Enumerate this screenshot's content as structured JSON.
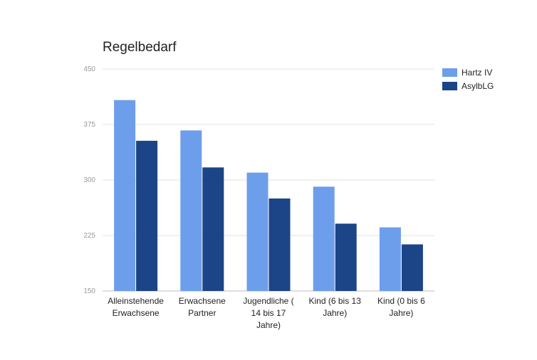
{
  "chart_data": {
    "type": "bar",
    "title": "Regelbedarf",
    "categories": [
      [
        "Alleinstehende",
        "Erwachsene"
      ],
      [
        "Erwachsene",
        "Partner"
      ],
      [
        "Jugendliche (",
        "14 bis 17",
        "Jahre)"
      ],
      [
        "Kind (6 bis 13",
        "Jahre)"
      ],
      [
        "Kind (0 bis 6",
        "Jahre)"
      ]
    ],
    "series": [
      {
        "name": "Hartz IV",
        "color": "#6d9eeb",
        "values": [
          408,
          367,
          310,
          291,
          236
        ]
      },
      {
        "name": "AsylbLG",
        "color": "#1c4587",
        "values": [
          353,
          317,
          275,
          241,
          213
        ]
      }
    ],
    "ylim": [
      150,
      450
    ],
    "yticks": [
      "150",
      "225",
      "300",
      "375",
      "450"
    ],
    "grid": true,
    "legend_position": "right-top",
    "xlabel": "",
    "ylabel": ""
  }
}
